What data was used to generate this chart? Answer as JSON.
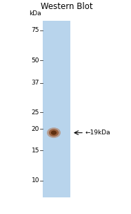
{
  "title": "Western Blot",
  "title_fontsize": 8.5,
  "kda_label": "kDa",
  "kda_label_fontsize": 6.5,
  "ladder_marks": [
    75,
    50,
    37,
    25,
    20,
    15,
    10
  ],
  "ladder_fontsize": 6.5,
  "band_kda": 19,
  "band_label": "←19kDa",
  "band_label_fontsize": 6.5,
  "gel_color": "#b8d4ec",
  "band_color_center": "#5a2a0a",
  "band_color_mid": "#8b4010",
  "band_color_edge": "#b06030",
  "background_color": "#ffffff",
  "ymin": 8,
  "ymax": 85
}
